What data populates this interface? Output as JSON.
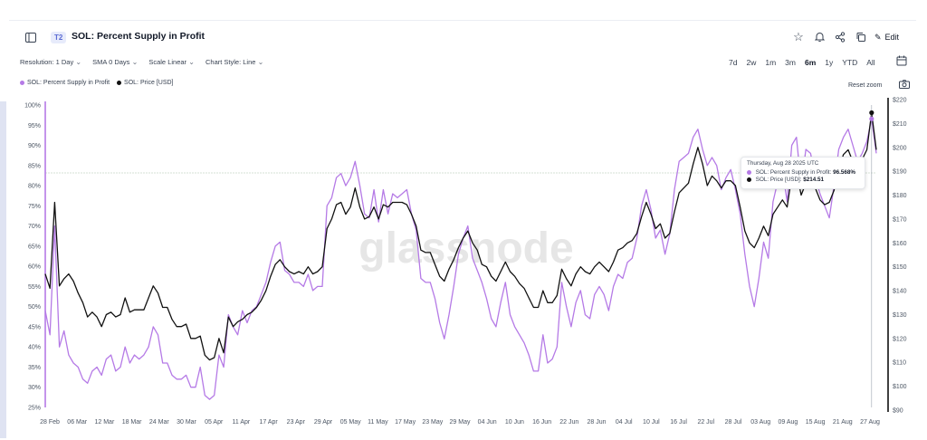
{
  "header": {
    "badge": "T2",
    "title": "SOL: Percent Supply in Profit",
    "edit_label": "Edit"
  },
  "controls": {
    "resolution": "Resolution: 1 Day",
    "sma": "SMA 0 Days",
    "scale": "Scale Linear",
    "style": "Chart Style: Line"
  },
  "ranges": [
    "7d",
    "2w",
    "1m",
    "3m",
    "6m",
    "1y",
    "YTD",
    "All"
  ],
  "selected_range": "6m",
  "reset_zoom": "Reset zoom",
  "watermark": "glassnode",
  "tooltip": {
    "date": "Thursday, Aug 28 2025 UTC",
    "supply_label": "SOL: Percent Supply in Profit:",
    "supply_value": "96.568%",
    "price_label": "SOL: Price [USD]:",
    "price_value": "$214.51"
  },
  "colors": {
    "supply": "#b57ae6",
    "price": "#111111",
    "accent": "#5b6bd3"
  },
  "chart_data": {
    "type": "line",
    "legend_placement": "top-left",
    "grid": true,
    "x_tick_labels": [
      "28 Feb",
      "06 Mar",
      "12 Mar",
      "18 Mar",
      "24 Mar",
      "30 Mar",
      "05 Apr",
      "11 Apr",
      "17 Apr",
      "23 Apr",
      "29 Apr",
      "05 May",
      "11 May",
      "17 May",
      "23 May",
      "29 May",
      "04 Jun",
      "10 Jun",
      "16 Jun",
      "22 Jun",
      "28 Jun",
      "04 Jul",
      "10 Jul",
      "16 Jul",
      "22 Jul",
      "28 Jul",
      "03 Aug",
      "09 Aug",
      "15 Aug",
      "21 Aug",
      "27 Aug"
    ],
    "y_left": {
      "label": "",
      "ticks": [
        "25%",
        "30%",
        "35%",
        "40%",
        "45%",
        "50%",
        "55%",
        "60%",
        "65%",
        "70%",
        "75%",
        "80%",
        "85%",
        "90%",
        "95%",
        "100%"
      ],
      "range": [
        25,
        100
      ]
    },
    "y_right": {
      "label": "",
      "ticks": [
        "$90",
        "$100",
        "$110",
        "$120",
        "$130",
        "$140",
        "$150",
        "$160",
        "$170",
        "$180",
        "$190",
        "$200",
        "$210",
        "$220"
      ],
      "range": [
        90,
        220
      ]
    },
    "series": [
      {
        "name": "SOL: Percent Supply in Profit",
        "axis": "left",
        "values": [
          49,
          43,
          70,
          40,
          44,
          38,
          36,
          35,
          32,
          31,
          34,
          35,
          33,
          37,
          38,
          34,
          35,
          40,
          36,
          38,
          37,
          38,
          40,
          45,
          43,
          36,
          36,
          33,
          32,
          32,
          33,
          30,
          30,
          35,
          28,
          27,
          28,
          38,
          35,
          48,
          45,
          43,
          49,
          46,
          49,
          50,
          53,
          56,
          61,
          65,
          66,
          59,
          58,
          56,
          56,
          55,
          58,
          54,
          55,
          55,
          75,
          77,
          82,
          83,
          80,
          82,
          86,
          80,
          73,
          72,
          79,
          71,
          79,
          73,
          78,
          77,
          78,
          79,
          73,
          69,
          57,
          56,
          56,
          52,
          46,
          42,
          48,
          55,
          63,
          67,
          70,
          62,
          59,
          56,
          52,
          47,
          45,
          51,
          56,
          48,
          45,
          43,
          41,
          38,
          34,
          34,
          43,
          36,
          37,
          40,
          56,
          50,
          45,
          51,
          54,
          48,
          47,
          53,
          55,
          53,
          49,
          55,
          58,
          57,
          61,
          62,
          67,
          75,
          79,
          74,
          67,
          69,
          63,
          68,
          79,
          86,
          87,
          88,
          92,
          94,
          89,
          85,
          87,
          85,
          79,
          82,
          84,
          79,
          73,
          63,
          55,
          50,
          57,
          66,
          62,
          76,
          81,
          84,
          76,
          90,
          92,
          80,
          89,
          88,
          82,
          78,
          75,
          72,
          80,
          89,
          92,
          94,
          90,
          86,
          88,
          91,
          96.568,
          88
        ]
      },
      {
        "name": "SOL: Price [USD]",
        "axis": "right",
        "values": [
          147,
          141,
          177,
          142,
          145,
          147,
          144,
          139,
          135,
          129,
          131,
          129,
          125,
          130,
          131,
          129,
          130,
          137,
          131,
          132,
          132,
          132,
          137,
          142,
          139,
          133,
          133,
          128,
          125,
          125,
          126,
          120,
          120,
          121,
          113,
          111,
          112,
          120,
          114,
          129,
          125,
          127,
          128,
          130,
          131,
          133,
          136,
          140,
          146,
          151,
          153,
          150,
          148,
          147,
          148,
          147,
          150,
          147,
          148,
          150,
          166,
          170,
          176,
          177,
          172,
          175,
          183,
          175,
          170,
          171,
          175,
          170,
          176,
          175,
          177,
          177,
          177,
          176,
          172,
          167,
          157,
          156,
          156,
          151,
          146,
          144,
          149,
          153,
          158,
          162,
          165,
          160,
          157,
          151,
          150,
          146,
          144,
          148,
          152,
          148,
          146,
          143,
          141,
          137,
          133,
          133,
          140,
          135,
          135,
          138,
          149,
          145,
          142,
          147,
          150,
          148,
          147,
          150,
          152,
          150,
          148,
          152,
          157,
          158,
          160,
          161,
          164,
          171,
          177,
          172,
          166,
          168,
          162,
          164,
          173,
          181,
          183,
          185,
          193,
          200,
          193,
          184,
          188,
          186,
          183,
          186,
          186,
          184,
          175,
          165,
          160,
          158,
          162,
          167,
          163,
          172,
          175,
          178,
          175,
          188,
          190,
          180,
          185,
          185,
          183,
          178,
          176,
          177,
          182,
          191,
          197,
          199,
          194,
          191,
          195,
          199,
          214.51,
          199
        ]
      }
    ],
    "hover_index": 176
  }
}
